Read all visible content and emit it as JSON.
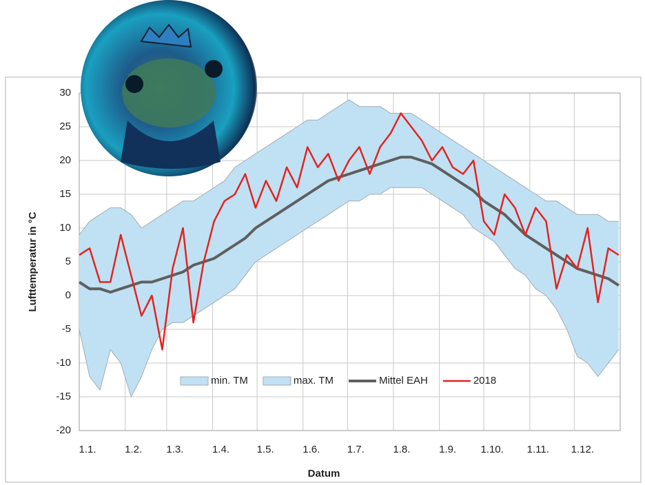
{
  "chart_data": {
    "type": "line",
    "x_label": "Datum",
    "y_label": "Lufttemperatur in °C",
    "x": [
      1,
      8,
      15,
      22,
      29,
      36,
      43,
      50,
      57,
      64,
      71,
      78,
      85,
      92,
      99,
      106,
      113,
      120,
      127,
      134,
      141,
      148,
      155,
      162,
      169,
      176,
      183,
      190,
      197,
      204,
      211,
      218,
      225,
      232,
      239,
      246,
      253,
      260,
      267,
      274,
      281,
      288,
      295,
      302,
      309,
      316,
      323,
      330,
      337,
      344,
      351,
      358,
      365
    ],
    "xlim": [
      1,
      366
    ],
    "xticks": [
      {
        "value": 1,
        "label": "1.1."
      },
      {
        "value": 32,
        "label": "1.2."
      },
      {
        "value": 60,
        "label": "1.3."
      },
      {
        "value": 91,
        "label": "1.4."
      },
      {
        "value": 121,
        "label": "1.5."
      },
      {
        "value": 152,
        "label": "1.6."
      },
      {
        "value": 182,
        "label": "1.7."
      },
      {
        "value": 213,
        "label": "1.8."
      },
      {
        "value": 244,
        "label": "1.9."
      },
      {
        "value": 274,
        "label": "1.10."
      },
      {
        "value": 305,
        "label": "1.11."
      },
      {
        "value": 335,
        "label": "1.12."
      }
    ],
    "ylim": [
      -20,
      30
    ],
    "yticks": [
      -20,
      -15,
      -10,
      -5,
      0,
      5,
      10,
      15,
      20,
      25,
      30
    ],
    "grid": true,
    "series": [
      {
        "name": "min. TM",
        "color": "#bfe1f3",
        "values": [
          -5,
          -12,
          -14,
          -8,
          -10,
          -15,
          -12,
          -8,
          -5,
          -4,
          -4,
          -3,
          -2,
          -1,
          0,
          1,
          3,
          5,
          6,
          7,
          8,
          9,
          10,
          11,
          12,
          13,
          14,
          14,
          15,
          15,
          16,
          16,
          16,
          16,
          15,
          14,
          13,
          12,
          10,
          9,
          8,
          6,
          4,
          3,
          1,
          0,
          -2,
          -5,
          -9,
          -10,
          -12,
          -10,
          -8
        ]
      },
      {
        "name": "max. TM",
        "color": "#bfe1f3",
        "values": [
          9,
          11,
          12,
          13,
          13,
          12,
          10,
          11,
          12,
          13,
          14,
          14,
          15,
          16,
          17,
          19,
          20,
          21,
          22,
          23,
          24,
          25,
          26,
          26,
          27,
          28,
          29,
          28,
          28,
          28,
          27,
          27,
          27,
          26,
          25,
          24,
          23,
          22,
          21,
          20,
          19,
          18,
          17,
          16,
          15,
          14,
          14,
          13,
          12,
          12,
          12,
          11,
          11
        ]
      },
      {
        "name": "Mittel EAH",
        "color": "#5f5f5f",
        "values": [
          2,
          1,
          1,
          0.5,
          1,
          1.5,
          2,
          2,
          2.5,
          3,
          3.5,
          4.5,
          5,
          5.5,
          6.5,
          7.5,
          8.5,
          10,
          11,
          12,
          13,
          14,
          15,
          16,
          17,
          17.5,
          18,
          18.5,
          19,
          19.5,
          20,
          20.5,
          20.5,
          20,
          19.5,
          18.5,
          17.5,
          16.5,
          15.5,
          14,
          13,
          12,
          10.5,
          9,
          8,
          7,
          6,
          5,
          4,
          3.5,
          3,
          2.5,
          1.5
        ]
      },
      {
        "name": "2018",
        "color": "#e3231f",
        "values": [
          6,
          7,
          2,
          2,
          9,
          3,
          -3,
          0,
          -8,
          4,
          10,
          -4,
          5,
          11,
          14,
          15,
          18,
          13,
          17,
          14,
          19,
          16,
          22,
          19,
          21,
          17,
          20,
          22,
          18,
          22,
          24,
          27,
          25,
          23,
          20,
          22,
          19,
          18,
          20,
          11,
          9,
          15,
          13,
          9,
          13,
          11,
          1,
          6,
          4,
          10,
          -1,
          7,
          6
        ]
      }
    ]
  }
}
